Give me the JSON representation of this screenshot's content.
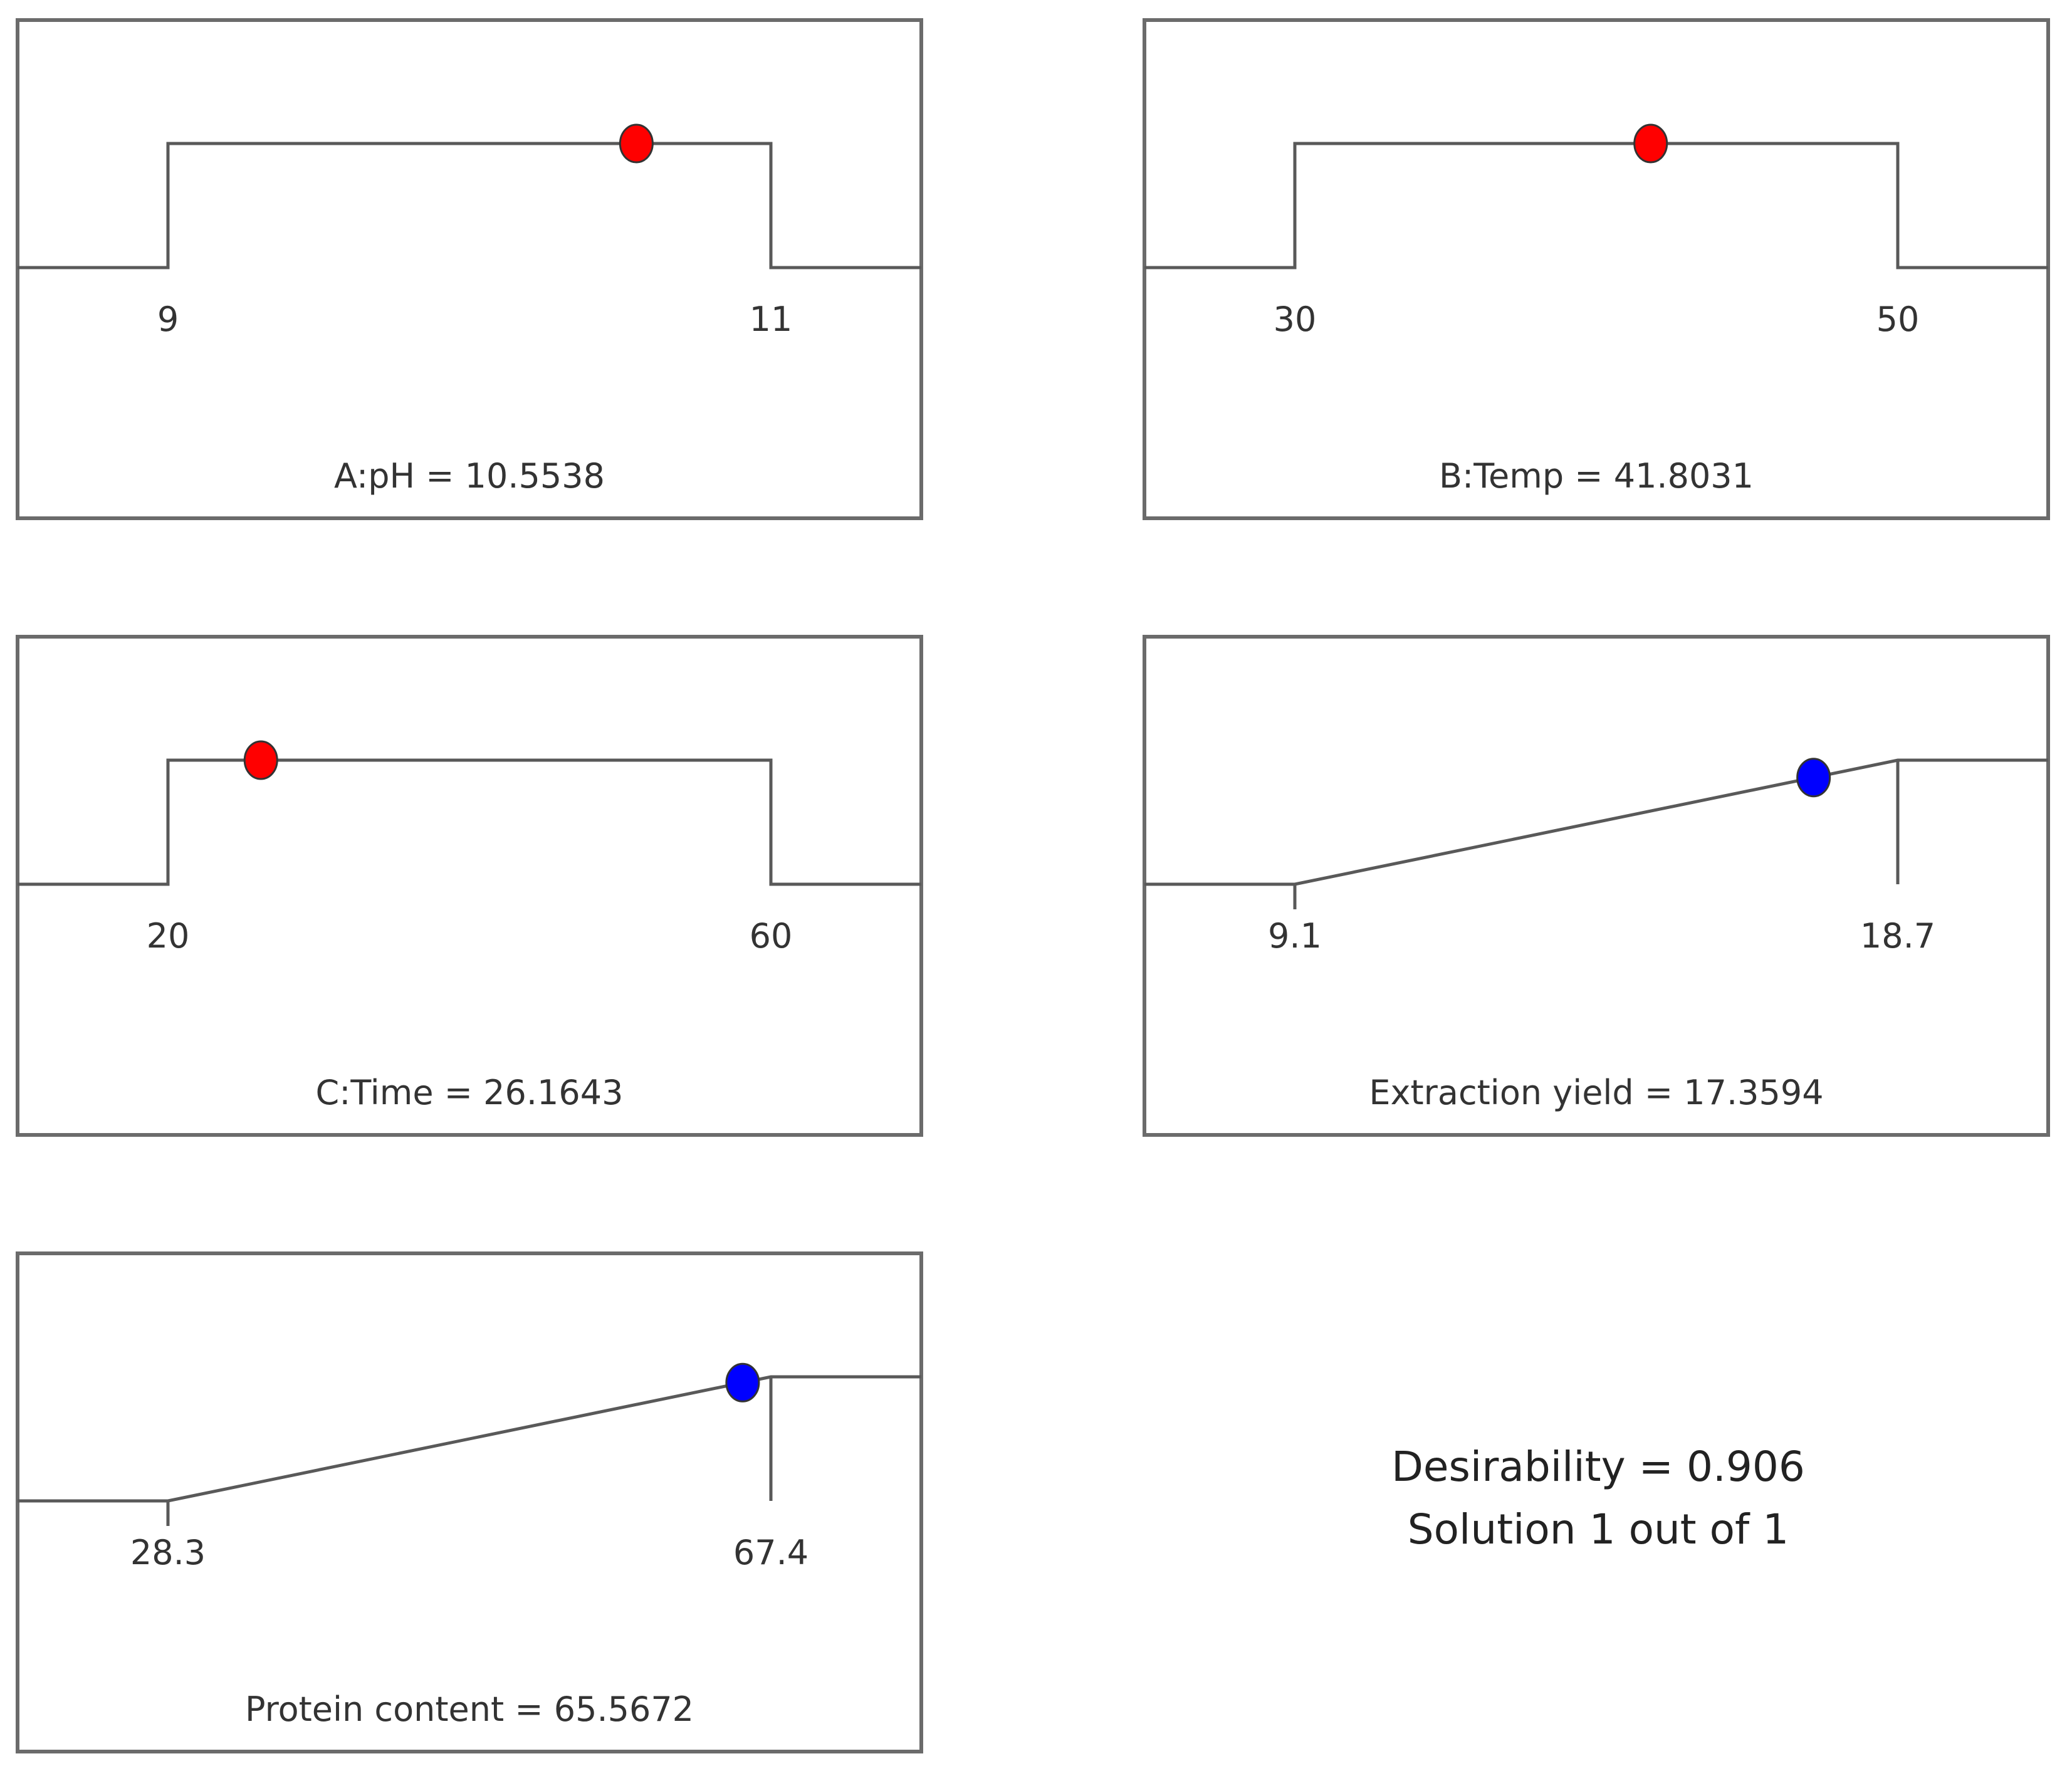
{
  "chart_data": [
    {
      "type": "line",
      "panel": "A",
      "label": "A:pH = 10.5538",
      "role": "factor",
      "goal_shape": "range",
      "range": [
        9,
        11
      ],
      "tick_labels": [
        "9",
        "11"
      ],
      "point": {
        "x": 10.5538,
        "desirability": 1
      },
      "point_color": "#ff0000",
      "line_color": "#595959"
    },
    {
      "type": "line",
      "panel": "B",
      "label": "B:Temp = 41.8031",
      "role": "factor",
      "goal_shape": "range",
      "range": [
        30,
        50
      ],
      "tick_labels": [
        "30",
        "50"
      ],
      "point": {
        "x": 41.8031,
        "desirability": 1
      },
      "point_color": "#ff0000",
      "line_color": "#595959"
    },
    {
      "type": "line",
      "panel": "C",
      "label": "C:Time = 26.1643",
      "role": "factor",
      "goal_shape": "range",
      "range": [
        20,
        60
      ],
      "tick_labels": [
        "20",
        "60"
      ],
      "point": {
        "x": 26.1643,
        "desirability": 1
      },
      "point_color": "#ff0000",
      "line_color": "#595959"
    },
    {
      "type": "line",
      "panel": "D",
      "label": "Extraction yield = 17.3594",
      "role": "response",
      "goal_shape": "maximize",
      "range": [
        9.1,
        18.7
      ],
      "tick_labels": [
        "9.1",
        "18.7"
      ],
      "point": {
        "x": 17.3594,
        "desirability": 0.86
      },
      "point_color": "#0000ff",
      "line_color": "#595959"
    },
    {
      "type": "line",
      "panel": "E",
      "label": "Protein content = 65.5672",
      "role": "response",
      "goal_shape": "maximize",
      "range": [
        28.3,
        67.4
      ],
      "tick_labels": [
        "28.3",
        "67.4"
      ],
      "point": {
        "x": 65.5672,
        "desirability": 0.953
      },
      "point_color": "#0000ff",
      "line_color": "#595959"
    }
  ],
  "summary": {
    "desirability": "Desirability = 0.906",
    "solution": "Solution 1 out of 1"
  }
}
